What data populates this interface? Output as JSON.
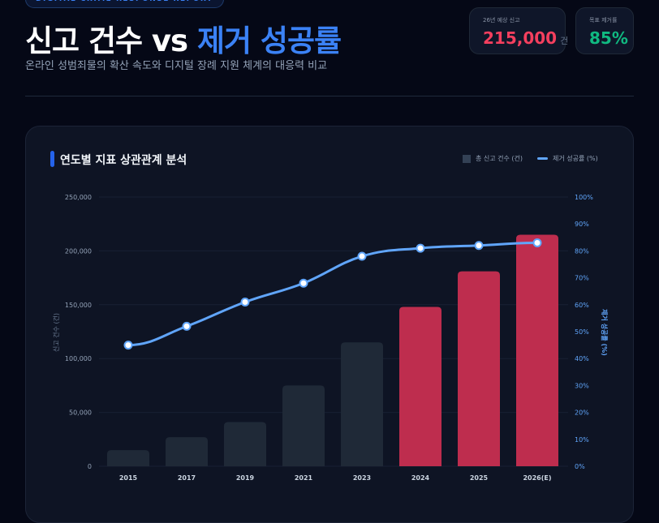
{
  "header": {
    "badge": "DIGITAL CRIME RESPONSE REPORT",
    "title_part1": "신고 건수 vs ",
    "title_part2": "제거 성공률",
    "subtitle": "온라인 성범죄물의 확산 속도와 디지털 장례 지원 체계의 대응력 비교"
  },
  "stats": [
    {
      "label": "26년 예상 신고",
      "value": "215,000",
      "unit": "건",
      "color": "#f43f5e"
    },
    {
      "label": "목표 제거률",
      "value": "85%",
      "color": "#10b981"
    }
  ],
  "card": {
    "title": "연도별 지표 상관관계 분석"
  },
  "chart_data": {
    "type": "bar+line",
    "categories": [
      "2015",
      "2017",
      "2019",
      "2021",
      "2023",
      "2024",
      "2025",
      "2026(E)"
    ],
    "series": [
      {
        "name": "총 신고 건수 (건)",
        "type": "bar",
        "axis": "left",
        "values": [
          15000,
          27000,
          41000,
          75000,
          115000,
          148000,
          181000,
          215000
        ],
        "colors": [
          "#1f2937",
          "#1f2937",
          "#1f2937",
          "#1f2937",
          "#1f2937",
          "#be2d4e",
          "#be2d4e",
          "#be2d4e"
        ]
      },
      {
        "name": "제거 성공률 (%)",
        "type": "line",
        "axis": "right",
        "values": [
          45,
          52,
          61,
          68,
          78,
          81,
          82,
          83
        ],
        "color": "#60a5fa"
      }
    ],
    "ylabel": "신고 건수 (건)",
    "y2label": "제거 성공률 (%)",
    "ylim": [
      0,
      250000
    ],
    "y2lim": [
      0,
      100
    ],
    "yticks": [
      "0",
      "50,000",
      "100,000",
      "150,000",
      "200,000",
      "250,000"
    ],
    "y2ticks": [
      "0%",
      "10%",
      "20%",
      "30%",
      "40%",
      "50%",
      "60%",
      "70%",
      "80%",
      "90%",
      "100%"
    ],
    "grid": true,
    "legend": "top-right"
  }
}
